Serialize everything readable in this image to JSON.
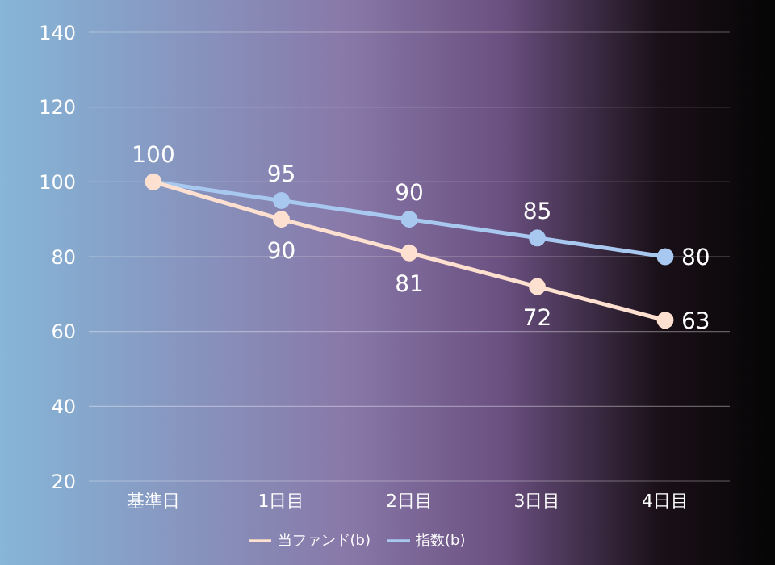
{
  "chart_data": {
    "type": "line",
    "categories": [
      "基準日",
      "1日目",
      "2日目",
      "3日目",
      "4日目"
    ],
    "series": [
      {
        "name": "指数(b)",
        "color": "#a8c8f0",
        "values": [
          100,
          95,
          90,
          85,
          80
        ],
        "value_labels": [
          "100",
          "95",
          "90",
          "85",
          "80"
        ]
      },
      {
        "name": "当ファンド(b)",
        "color": "#fde0d0",
        "values": [
          100,
          90,
          81,
          72,
          63
        ],
        "value_labels": [
          null,
          "90",
          "81",
          "72",
          "63"
        ]
      }
    ],
    "ylim": [
      20,
      140
    ],
    "yticks": [
      20,
      40,
      60,
      80,
      100,
      120,
      140
    ],
    "grid": "y",
    "legend": "bottom",
    "marker": "circle"
  }
}
